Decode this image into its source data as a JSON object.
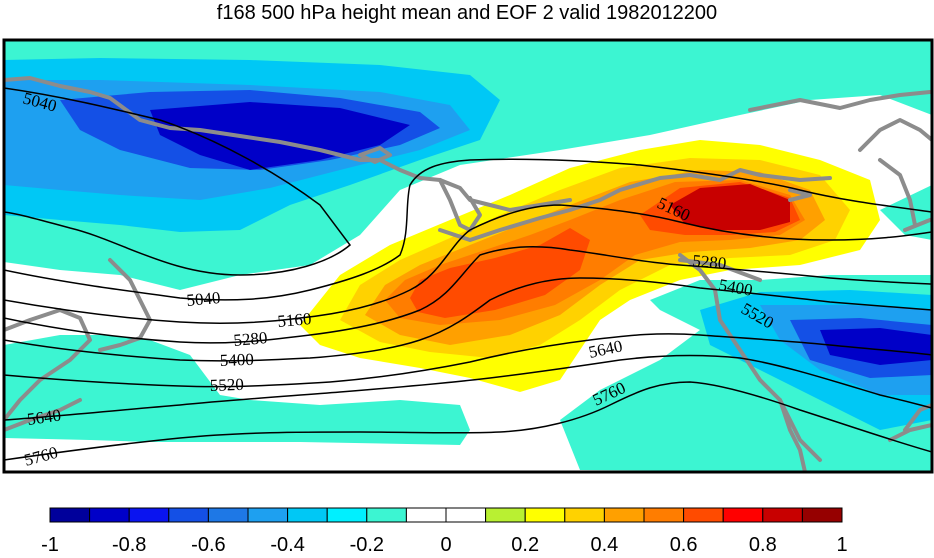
{
  "title": "f168 500 hPa height mean and EOF 2 valid 1982012200",
  "colorbar": {
    "colors": [
      "#00009b",
      "#0000c8",
      "#0a14f0",
      "#1450e6",
      "#1e78e6",
      "#1ea0f0",
      "#00c8f5",
      "#00f0ff",
      "#3cf5d2",
      "#ffffff",
      "#ffffff",
      "#b9f032",
      "#ffff00",
      "#ffd200",
      "#ffa000",
      "#ff7d00",
      "#ff4b00",
      "#ff0000",
      "#c80000",
      "#960000"
    ],
    "tick_labels": [
      "-1",
      "-0.8",
      "-0.6",
      "-0.4",
      "-0.2",
      "0",
      "0.2",
      "0.4",
      "0.6",
      "0.8",
      "1"
    ]
  },
  "shading_colors": {
    "cyan": "#3cf5d2",
    "sky": "#00c8f5",
    "light_blue": "#1ea0f0",
    "blue": "#1450e6",
    "dark_blue": "#0000c8",
    "yellow": "#ffff00",
    "gold": "#ffd200",
    "orange": "#ffa000",
    "dark_orange": "#ff7d00",
    "red": "#ff4b00",
    "dark_red": "#c80000"
  },
  "coastline_color": "#8c8c8c",
  "contour_labels": [
    {
      "id": "c5040-nw",
      "text": "5040"
    },
    {
      "id": "c5040-sw",
      "text": "5040"
    },
    {
      "id": "c5160-w",
      "text": "5160"
    },
    {
      "id": "c5160-ne",
      "text": "5160"
    },
    {
      "id": "c5280-w",
      "text": "5280"
    },
    {
      "id": "c5280-e",
      "text": "5280"
    },
    {
      "id": "c5400-w",
      "text": "5400"
    },
    {
      "id": "c5400-e",
      "text": "5400"
    },
    {
      "id": "c5520-w",
      "text": "5520"
    },
    {
      "id": "c5520-e",
      "text": "5520"
    },
    {
      "id": "c5640-w",
      "text": "5640"
    },
    {
      "id": "c5640-e",
      "text": "5640"
    },
    {
      "id": "c5760-w",
      "text": "5760"
    },
    {
      "id": "c5760-e",
      "text": "5760"
    }
  ]
}
